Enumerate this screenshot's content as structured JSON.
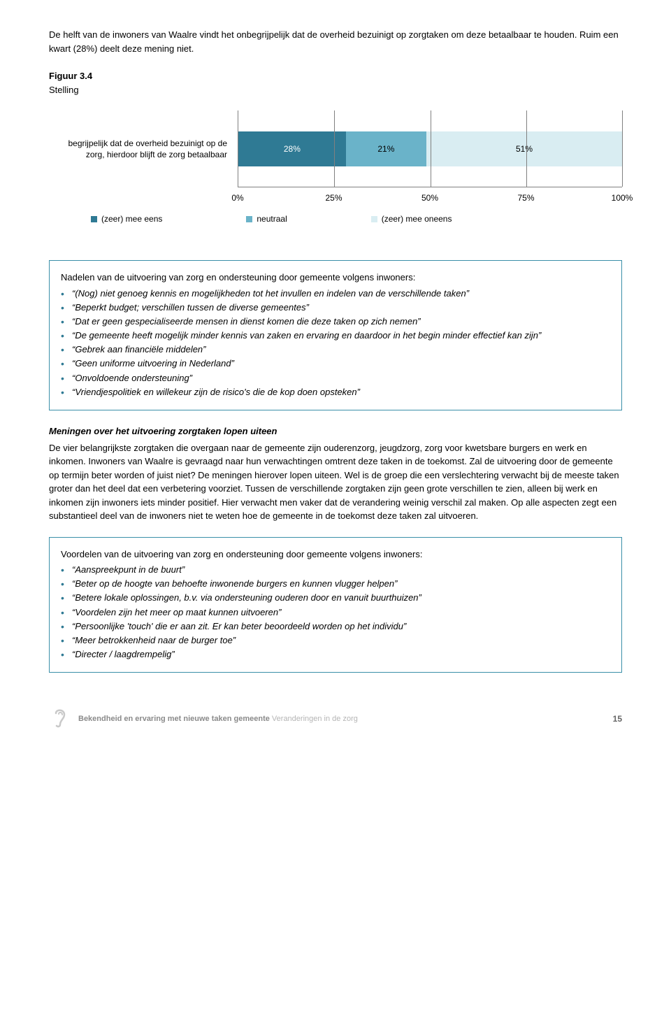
{
  "intro": "De helft van de inwoners van Waalre vindt het onbegrijpelijk dat de overheid bezuinigt op zorgtaken om deze betaalbaar te houden. Ruim een kwart (28%) deelt deze mening niet.",
  "figure_label": "Figuur 3.4",
  "stelling_label": "Stelling",
  "chart": {
    "ylabel_line1": "begrijpelijk dat de overheid bezuinigt op de",
    "ylabel_line2": "zorg, hierdoor blijft de zorg betaalbaar",
    "segments": [
      {
        "label": "28%",
        "value": 28,
        "color": "#2f7a94",
        "text_color": "#ffffff"
      },
      {
        "label": "21%",
        "value": 21,
        "color": "#6ab3c9",
        "text_color": "#000000"
      },
      {
        "label": "51%",
        "value": 51,
        "color": "#d9edf2",
        "text_color": "#000000"
      }
    ],
    "xaxis": {
      "ticks": [
        {
          "pos": 0,
          "label": "0%"
        },
        {
          "pos": 25,
          "label": "25%"
        },
        {
          "pos": 50,
          "label": "50%"
        },
        {
          "pos": 75,
          "label": "75%"
        },
        {
          "pos": 100,
          "label": "100%"
        }
      ]
    },
    "gridlines": [
      25,
      50,
      75,
      100
    ],
    "legend": [
      {
        "color": "#2f7a94",
        "label": "(zeer) mee eens"
      },
      {
        "color": "#6ab3c9",
        "label": "neutraal"
      },
      {
        "color": "#d9edf2",
        "label": "(zeer) mee oneens"
      }
    ]
  },
  "box1": {
    "title": "Nadelen van de uitvoering van zorg en ondersteuning door gemeente volgens inwoners:",
    "bullet_color": "#2f7a94",
    "items": [
      "“(Nog) niet genoeg kennis en mogelijkheden tot het invullen en indelen van de verschillende taken”",
      "“Beperkt budget; verschillen tussen de diverse gemeentes”",
      "“Dat er geen gespecialiseerde mensen in dienst komen die deze taken op zich nemen”",
      "“De gemeente heeft mogelijk minder kennis van zaken en ervaring en daardoor in het begin minder effectief kan zijn”",
      "“Gebrek aan financiële middelen”",
      "“Geen uniforme uitvoering in Nederland”",
      "“Onvoldoende ondersteuning”",
      "“Vriendjespolitiek en willekeur zijn de risico's die de kop doen opsteken”"
    ]
  },
  "section_title": "Meningen over het uitvoering zorgtaken lopen uiteen",
  "body": "De vier belangrijkste zorgtaken die overgaan naar de gemeente zijn ouderenzorg, jeugdzorg, zorg voor kwetsbare burgers en werk en inkomen. Inwoners van Waalre is gevraagd naar hun verwachtingen omtrent deze taken in de toekomst. Zal de uitvoering door de gemeente op termijn beter worden of juist niet? De meningen hierover lopen uiteen. Wel is de groep die een verslechtering verwacht bij de meeste taken groter dan het deel dat een verbetering voorziet. Tussen de verschillende zorgtaken zijn geen grote verschillen te zien, alleen bij werk en inkomen zijn inwoners iets minder positief. Hier verwacht men vaker dat de verandering weinig verschil zal maken. Op alle aspecten zegt een substantieel deel van de inwoners niet te weten hoe de gemeente in de toekomst deze taken zal uitvoeren.",
  "box2": {
    "title": "Voordelen van de uitvoering van zorg en ondersteuning door gemeente volgens inwoners:",
    "bullet_color": "#2f7a94",
    "items": [
      "“Aanspreekpunt in de buurt”",
      "“Beter op de hoogte van behoefte inwonende burgers en kunnen vlugger helpen”",
      "“Betere lokale oplossingen, b.v. via ondersteuning ouderen door en vanuit buurthuizen”",
      "“Voordelen zijn het meer op maat kunnen uitvoeren”",
      "“Persoonlijke 'touch' die er aan zit. Er kan beter beoordeeld worden op het individu”",
      "“Meer betrokkenheid naar de burger toe”",
      "“Directer / laagdrempelig”"
    ]
  },
  "footer": {
    "bold": "Bekendheid en ervaring met nieuwe taken gemeente",
    "light": " Veranderingen in de zorg",
    "page": "15",
    "icon_color": "#c9c9c9"
  }
}
